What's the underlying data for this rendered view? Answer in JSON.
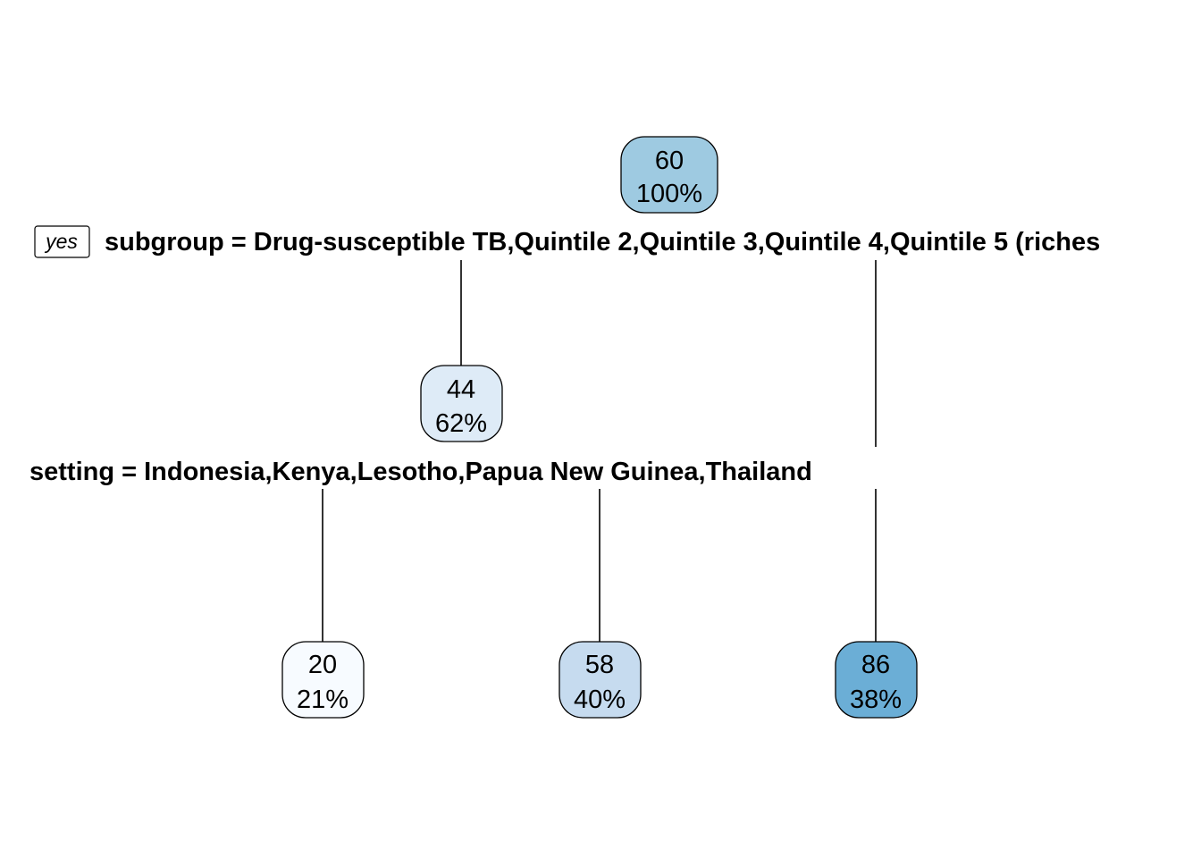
{
  "tree": {
    "yes_label": "yes",
    "splits": [
      {
        "id": "split-1",
        "label": "subgroup = Drug-susceptible TB,Quintile 2,Quintile 3,Quintile 4,Quintile 5 (riches"
      },
      {
        "id": "split-2",
        "label": "setting = Indonesia,Kenya,Lesotho,Papua New Guinea,Thailand"
      }
    ],
    "nodes": [
      {
        "id": "root",
        "value": "60",
        "percent": "100%",
        "color": "#9ecae1"
      },
      {
        "id": "node-44",
        "value": "44",
        "percent": "62%",
        "color": "#deebf7"
      },
      {
        "id": "leaf-20",
        "value": "20",
        "percent": "21%",
        "color": "#f7fbff"
      },
      {
        "id": "leaf-58",
        "value": "58",
        "percent": "40%",
        "color": "#c6dbef"
      },
      {
        "id": "leaf-86",
        "value": "86",
        "percent": "38%",
        "color": "#6baed6"
      }
    ]
  }
}
